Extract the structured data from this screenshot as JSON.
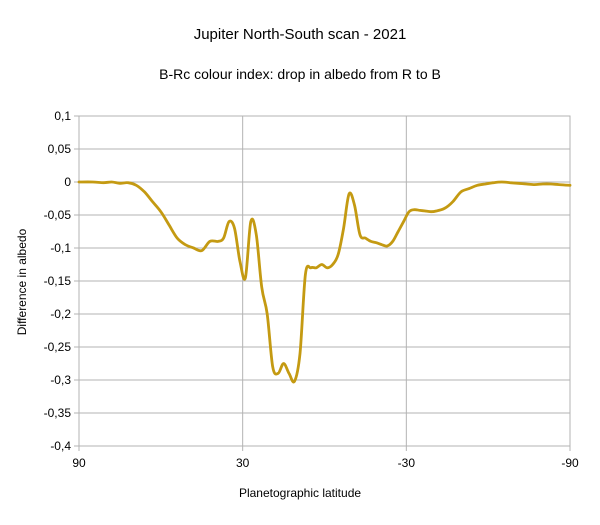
{
  "chart_data": {
    "type": "line",
    "title": "Jupiter North-South scan - 2021",
    "subtitle": "B-Rc colour index: drop in albedo from R to B",
    "xlabel": "Planetographic latitude",
    "ylabel": "Difference in albedo",
    "xlim": [
      90,
      -90
    ],
    "ylim": [
      -0.4,
      0.1
    ],
    "xticks": [
      "90",
      "30",
      "-30",
      "-90"
    ],
    "yticks": [
      "0,1",
      "0,05",
      "0",
      "-0,05",
      "-0,1",
      "-0,15",
      "-0,2",
      "-0,25",
      "-0,3",
      "-0,35",
      "-0,4"
    ],
    "grid": true,
    "line_color": "#c49a12",
    "series": [
      {
        "x": [
          90,
          85,
          81,
          78,
          75,
          72,
          69,
          66,
          63,
          60,
          57,
          54,
          51,
          48,
          45,
          42,
          39,
          37,
          35,
          33,
          31,
          29,
          27,
          25,
          23,
          21,
          19,
          17,
          15,
          13,
          11,
          9,
          7,
          5,
          3,
          1,
          -1,
          -3,
          -5,
          -7,
          -9,
          -11,
          -13,
          -15,
          -17,
          -19,
          -21,
          -23,
          -25,
          -27,
          -29,
          -31,
          -33,
          -35,
          -37,
          -39,
          -41,
          -44,
          -47,
          -50,
          -53,
          -56,
          -59,
          -62,
          -65,
          -68,
          -71,
          -74,
          -77,
          -80,
          -83,
          -86,
          -90
        ],
        "y": [
          0,
          0,
          -0.001,
          0,
          -0.002,
          -0.001,
          -0.005,
          -0.015,
          -0.03,
          -0.045,
          -0.065,
          -0.085,
          -0.095,
          -0.1,
          -0.104,
          -0.09,
          -0.09,
          -0.085,
          -0.06,
          -0.07,
          -0.12,
          -0.145,
          -0.06,
          -0.08,
          -0.16,
          -0.2,
          -0.28,
          -0.29,
          -0.275,
          -0.29,
          -0.302,
          -0.26,
          -0.14,
          -0.13,
          -0.13,
          -0.125,
          -0.13,
          -0.125,
          -0.11,
          -0.07,
          -0.018,
          -0.035,
          -0.08,
          -0.085,
          -0.09,
          -0.092,
          -0.095,
          -0.097,
          -0.09,
          -0.075,
          -0.06,
          -0.045,
          -0.042,
          -0.043,
          -0.044,
          -0.045,
          -0.044,
          -0.04,
          -0.03,
          -0.015,
          -0.01,
          -0.005,
          -0.003,
          -0.001,
          0,
          -0.001,
          -0.002,
          -0.003,
          -0.004,
          -0.003,
          -0.003,
          -0.004,
          -0.005
        ]
      }
    ]
  }
}
